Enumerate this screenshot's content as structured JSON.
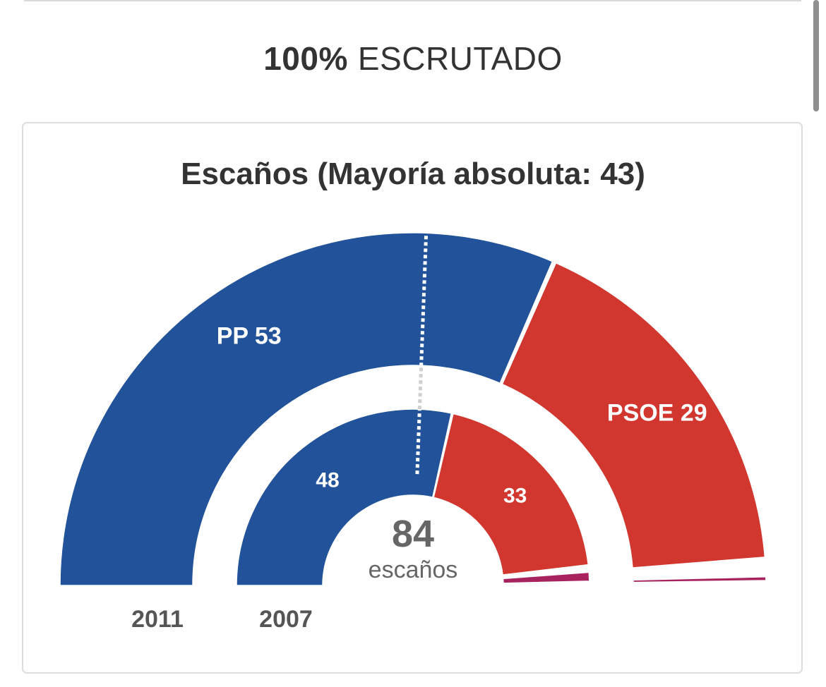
{
  "header": {
    "counted_percent": "100%",
    "counted_label": "ESCRUTADO"
  },
  "card": {
    "title": "Escaños (Mayoría absoluta: 43)"
  },
  "chart_data": {
    "type": "pie",
    "subtype": "half-donut-parliament",
    "title": "Escaños (Mayoría absoluta: 43)",
    "total_seats": 84,
    "total_label": "escaños",
    "majority": 43,
    "rings": [
      {
        "year": "2011",
        "ring": "outer",
        "seats": [
          {
            "party": "PP",
            "value": 53,
            "label": "PP 53",
            "color": "#22529a"
          },
          {
            "party": "PSOE",
            "value": 29,
            "label": "PSOE 29",
            "color": "#d1372f"
          },
          {
            "party": "",
            "value": 1,
            "label": "",
            "color": "#a8223a"
          },
          {
            "party": "",
            "value": 1,
            "label": "",
            "color": "#a8235e"
          }
        ]
      },
      {
        "year": "2007",
        "ring": "inner",
        "seats": [
          {
            "party": "PP",
            "value": 48,
            "label": "48",
            "color": "#22529a"
          },
          {
            "party": "PSOE",
            "value": 33,
            "label": "33",
            "color": "#d1372f"
          },
          {
            "party": "",
            "value": 1,
            "label": "",
            "color": "#a8235e"
          }
        ]
      }
    ]
  }
}
